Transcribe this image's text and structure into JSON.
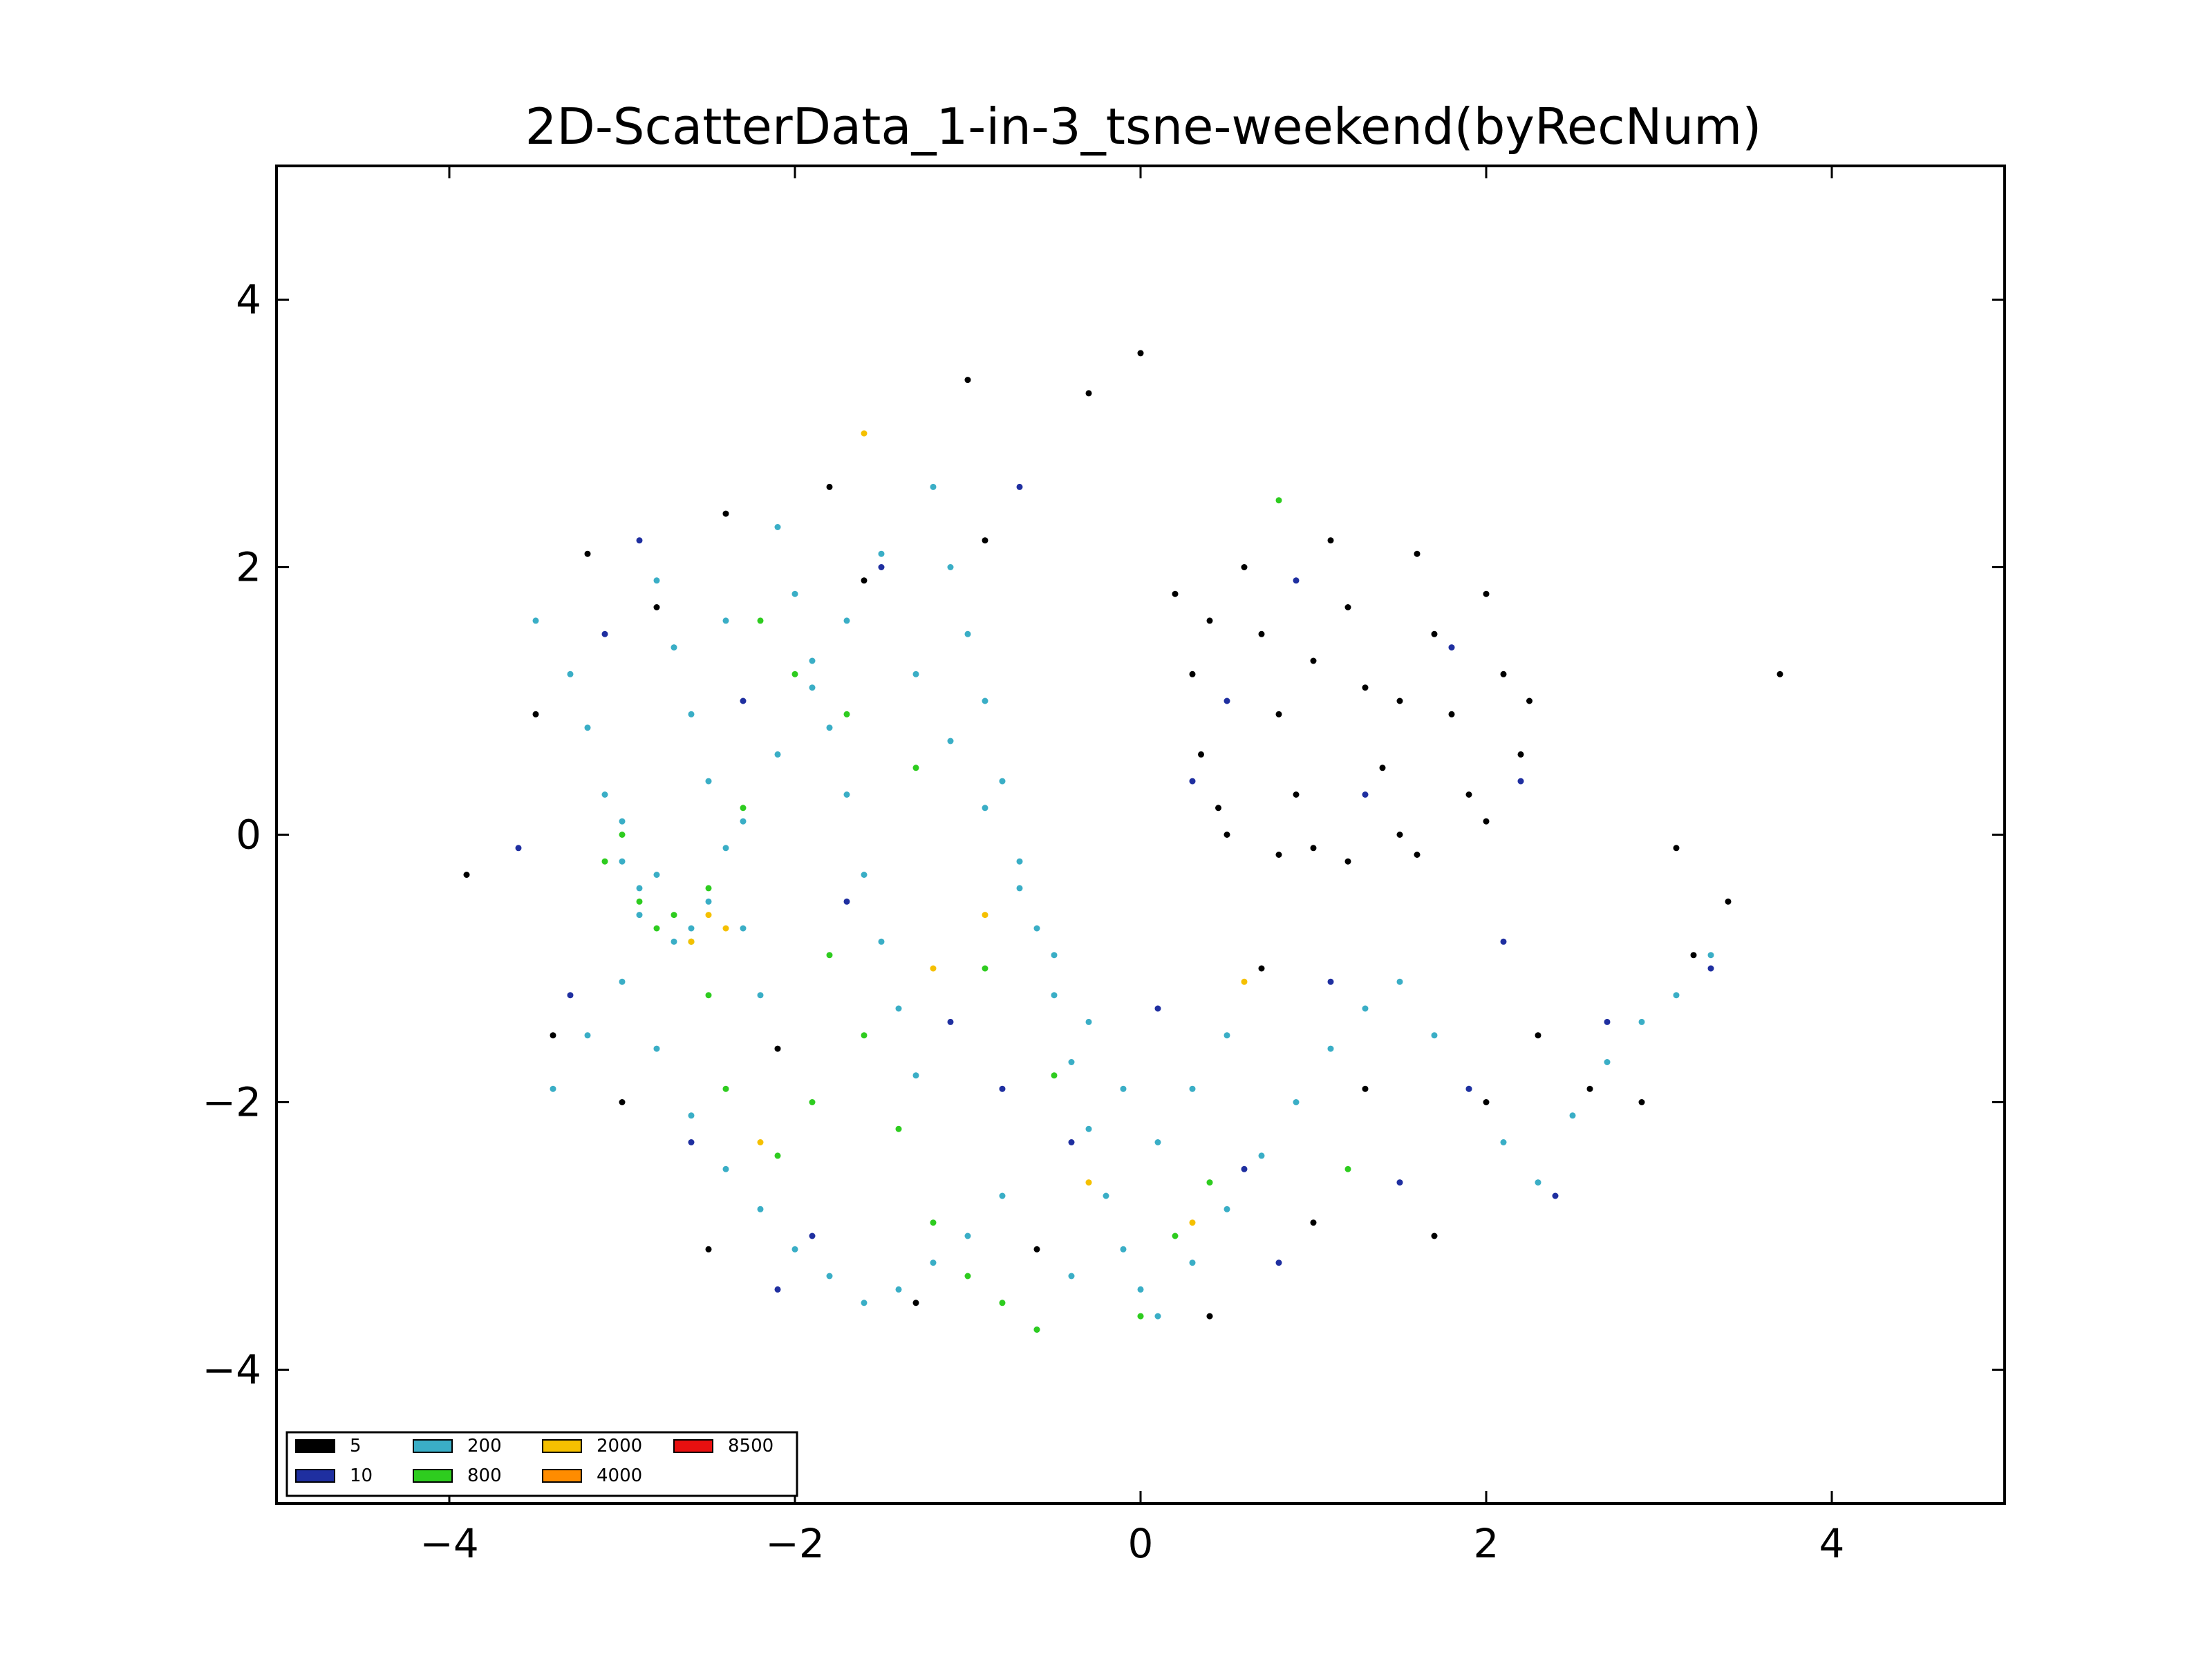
{
  "chart_data": {
    "type": "scatter",
    "title": "2D-ScatterData_1-in-3_tsne-weekend(byRecNum)",
    "xlabel": "",
    "ylabel": "",
    "xlim": [
      -5,
      5
    ],
    "ylim": [
      -5,
      5
    ],
    "x_ticks": [
      -4,
      -2,
      0,
      2,
      4
    ],
    "y_ticks": [
      -4,
      -2,
      0,
      2,
      4
    ],
    "x_tick_labels": [
      "−4",
      "−2",
      "0",
      "2",
      "4"
    ],
    "y_tick_labels": [
      "−4",
      "−2",
      "0",
      "2",
      "4"
    ],
    "grid": false,
    "legend_position": "lower-left",
    "legend": [
      {
        "label": "5",
        "color": "#000000"
      },
      {
        "label": "10",
        "color": "#1f2fa0"
      },
      {
        "label": "200",
        "color": "#3aaec6"
      },
      {
        "label": "800",
        "color": "#2ecc1f"
      },
      {
        "label": "2000",
        "color": "#f5c000"
      },
      {
        "label": "4000",
        "color": "#ff8c00"
      },
      {
        "label": "8500",
        "color": "#e81010"
      }
    ],
    "series": [
      {
        "label": "200",
        "color": "#3aaec6",
        "points": [
          [
            -3.5,
            1.6
          ],
          [
            -3.3,
            1.2
          ],
          [
            -3.2,
            0.8
          ],
          [
            -3.1,
            0.3
          ],
          [
            -3.0,
            -0.2
          ],
          [
            -2.9,
            -0.6
          ],
          [
            -2.8,
            1.9
          ],
          [
            -2.7,
            1.4
          ],
          [
            -2.6,
            0.9
          ],
          [
            -2.5,
            0.4
          ],
          [
            -2.4,
            -0.1
          ],
          [
            -2.3,
            -0.7
          ],
          [
            -2.2,
            -1.2
          ],
          [
            -2.1,
            2.3
          ],
          [
            -2.0,
            1.8
          ],
          [
            -1.9,
            1.3
          ],
          [
            -1.8,
            0.8
          ],
          [
            -1.7,
            0.3
          ],
          [
            -1.6,
            -0.3
          ],
          [
            -1.5,
            -0.8
          ],
          [
            -1.4,
            -1.3
          ],
          [
            -1.3,
            -1.8
          ],
          [
            -1.2,
            2.6
          ],
          [
            -1.1,
            2.0
          ],
          [
            -1.0,
            1.5
          ],
          [
            -0.9,
            1.0
          ],
          [
            -0.8,
            0.4
          ],
          [
            -0.7,
            -0.2
          ],
          [
            -0.6,
            -0.7
          ],
          [
            -0.5,
            -1.2
          ],
          [
            -0.4,
            -1.7
          ],
          [
            -0.3,
            -2.2
          ],
          [
            -0.2,
            -2.7
          ],
          [
            -0.1,
            -3.1
          ],
          [
            0.0,
            -3.4
          ],
          [
            0.1,
            -3.6
          ],
          [
            0.3,
            -3.2
          ],
          [
            0.5,
            -2.8
          ],
          [
            0.7,
            -2.4
          ],
          [
            0.9,
            -2.0
          ],
          [
            1.1,
            -1.6
          ],
          [
            1.3,
            -1.3
          ],
          [
            1.5,
            -1.1
          ],
          [
            1.7,
            -1.5
          ],
          [
            1.9,
            -1.9
          ],
          [
            2.1,
            -2.3
          ],
          [
            2.3,
            -2.6
          ],
          [
            2.5,
            -2.1
          ],
          [
            2.7,
            -1.7
          ],
          [
            2.9,
            -1.4
          ],
          [
            3.1,
            -1.2
          ],
          [
            3.3,
            -0.9
          ],
          [
            -3.4,
            -1.9
          ],
          [
            -3.2,
            -1.5
          ],
          [
            -3.0,
            -1.1
          ],
          [
            -2.8,
            -1.6
          ],
          [
            -2.6,
            -2.1
          ],
          [
            -2.4,
            -2.5
          ],
          [
            -2.2,
            -2.8
          ],
          [
            -2.0,
            -3.1
          ],
          [
            -1.8,
            -3.3
          ],
          [
            -1.6,
            -3.5
          ],
          [
            -1.4,
            -3.4
          ],
          [
            -1.2,
            -3.2
          ],
          [
            -1.0,
            -3.0
          ],
          [
            -0.8,
            -2.7
          ],
          [
            -0.6,
            -3.7
          ],
          [
            -0.4,
            -3.3
          ],
          [
            -2.9,
            -0.4
          ],
          [
            -2.7,
            -0.8
          ],
          [
            -2.5,
            -0.5
          ],
          [
            -2.3,
            0.1
          ],
          [
            -2.1,
            0.6
          ],
          [
            -1.9,
            1.1
          ],
          [
            -1.7,
            1.6
          ],
          [
            -1.5,
            2.1
          ],
          [
            -1.3,
            1.2
          ],
          [
            -1.1,
            0.7
          ],
          [
            -0.9,
            0.2
          ],
          [
            -0.7,
            -0.4
          ],
          [
            -0.5,
            -0.9
          ],
          [
            -0.3,
            -1.4
          ],
          [
            -0.1,
            -1.9
          ],
          [
            0.1,
            -2.3
          ],
          [
            0.3,
            -1.9
          ],
          [
            0.5,
            -1.5
          ],
          [
            -2.6,
            -0.7
          ],
          [
            -2.8,
            -0.3
          ],
          [
            -3.0,
            0.1
          ],
          [
            -2.4,
            1.6
          ]
        ]
      },
      {
        "label": "800",
        "color": "#2ecc1f",
        "points": [
          [
            -3.0,
            0.0
          ],
          [
            -2.9,
            -0.5
          ],
          [
            -2.8,
            -0.7
          ],
          [
            -2.7,
            -0.6
          ],
          [
            -2.6,
            -0.8
          ],
          [
            -2.5,
            -0.4
          ],
          [
            -2.3,
            0.2
          ],
          [
            -2.2,
            1.6
          ],
          [
            -2.0,
            1.2
          ],
          [
            -1.8,
            -0.9
          ],
          [
            -1.6,
            -1.5
          ],
          [
            -1.4,
            -2.2
          ],
          [
            -1.2,
            -2.9
          ],
          [
            -1.0,
            -3.3
          ],
          [
            -0.8,
            -3.5
          ],
          [
            -0.6,
            -3.7
          ],
          [
            0.0,
            -3.6
          ],
          [
            0.2,
            -3.0
          ],
          [
            0.4,
            -2.6
          ],
          [
            -1.3,
            0.5
          ],
          [
            -0.9,
            -1.0
          ],
          [
            -0.5,
            -1.8
          ],
          [
            -2.4,
            -1.9
          ],
          [
            -2.1,
            -2.4
          ],
          [
            -1.7,
            0.9
          ],
          [
            0.8,
            2.5
          ],
          [
            1.2,
            -2.5
          ],
          [
            -3.1,
            -0.2
          ],
          [
            -2.5,
            -1.2
          ],
          [
            -1.9,
            -2.0
          ]
        ]
      },
      {
        "label": "2000",
        "color": "#f5c000",
        "points": [
          [
            -2.6,
            -0.8
          ],
          [
            -2.5,
            -0.6
          ],
          [
            -2.4,
            -0.7
          ],
          [
            -1.6,
            3.0
          ],
          [
            -1.2,
            -1.0
          ],
          [
            -0.3,
            -2.6
          ],
          [
            0.6,
            -1.1
          ],
          [
            -2.2,
            -2.3
          ],
          [
            -0.9,
            -0.6
          ],
          [
            0.3,
            -2.9
          ]
        ]
      },
      {
        "label": "5",
        "color": "#000000",
        "points": [
          [
            0.2,
            1.8
          ],
          [
            0.3,
            1.2
          ],
          [
            0.35,
            0.6
          ],
          [
            0.45,
            0.2
          ],
          [
            0.6,
            2.0
          ],
          [
            0.7,
            1.5
          ],
          [
            0.8,
            0.9
          ],
          [
            0.9,
            0.3
          ],
          [
            1.0,
            -0.1
          ],
          [
            1.1,
            2.2
          ],
          [
            1.2,
            1.7
          ],
          [
            1.3,
            1.1
          ],
          [
            1.4,
            0.5
          ],
          [
            1.5,
            0.0
          ],
          [
            1.6,
            2.1
          ],
          [
            1.7,
            1.5
          ],
          [
            1.8,
            0.9
          ],
          [
            1.9,
            0.3
          ],
          [
            2.0,
            1.8
          ],
          [
            2.1,
            1.2
          ],
          [
            2.2,
            0.6
          ],
          [
            2.25,
            1.0
          ],
          [
            0.5,
            0.0
          ],
          [
            0.8,
            -0.15
          ],
          [
            1.2,
            -0.2
          ],
          [
            1.6,
            -0.15
          ],
          [
            2.0,
            0.1
          ],
          [
            0.4,
            1.6
          ],
          [
            1.0,
            1.3
          ],
          [
            1.5,
            1.0
          ],
          [
            -3.5,
            0.9
          ],
          [
            -3.2,
            2.1
          ],
          [
            -2.8,
            1.7
          ],
          [
            -2.4,
            2.4
          ],
          [
            -2.1,
            -1.6
          ],
          [
            -1.8,
            2.6
          ],
          [
            -1.6,
            1.9
          ],
          [
            -1.3,
            -3.5
          ],
          [
            -1.0,
            3.4
          ],
          [
            -0.9,
            2.2
          ],
          [
            -0.6,
            -3.1
          ],
          [
            -0.3,
            3.3
          ],
          [
            0.0,
            3.6
          ],
          [
            0.4,
            -3.6
          ],
          [
            0.7,
            -1.0
          ],
          [
            1.0,
            -2.9
          ],
          [
            1.3,
            -1.9
          ],
          [
            1.7,
            -3.0
          ],
          [
            2.0,
            -2.0
          ],
          [
            2.3,
            -1.5
          ],
          [
            2.6,
            -1.9
          ],
          [
            2.9,
            -2.0
          ],
          [
            3.2,
            -0.9
          ],
          [
            3.4,
            -0.5
          ],
          [
            3.7,
            1.2
          ],
          [
            3.1,
            -0.1
          ],
          [
            -3.4,
            -1.5
          ],
          [
            -3.0,
            -2.0
          ],
          [
            -2.5,
            -3.1
          ],
          [
            -3.9,
            -0.3
          ]
        ]
      },
      {
        "label": "10",
        "color": "#1f2fa0",
        "points": [
          [
            0.3,
            0.4
          ],
          [
            0.5,
            1.0
          ],
          [
            0.9,
            1.9
          ],
          [
            1.3,
            0.3
          ],
          [
            1.8,
            1.4
          ],
          [
            2.2,
            0.4
          ],
          [
            -3.6,
            -0.1
          ],
          [
            -3.3,
            -1.2
          ],
          [
            -2.6,
            -2.3
          ],
          [
            -2.1,
            -3.4
          ],
          [
            -1.5,
            2.0
          ],
          [
            -1.1,
            -1.4
          ],
          [
            -0.7,
            2.6
          ],
          [
            -0.4,
            -2.3
          ],
          [
            0.6,
            -2.5
          ],
          [
            1.1,
            -1.1
          ],
          [
            1.5,
            -2.6
          ],
          [
            2.1,
            -0.8
          ],
          [
            2.7,
            -1.4
          ],
          [
            3.3,
            -1.0
          ],
          [
            -2.9,
            2.2
          ],
          [
            -2.3,
            1.0
          ],
          [
            -1.7,
            -0.5
          ],
          [
            -0.8,
            -1.9
          ],
          [
            0.1,
            -1.3
          ],
          [
            1.9,
            -1.9
          ],
          [
            2.4,
            -2.7
          ],
          [
            -1.9,
            -3.0
          ],
          [
            -3.1,
            1.5
          ],
          [
            0.8,
            -3.2
          ]
        ]
      }
    ]
  }
}
